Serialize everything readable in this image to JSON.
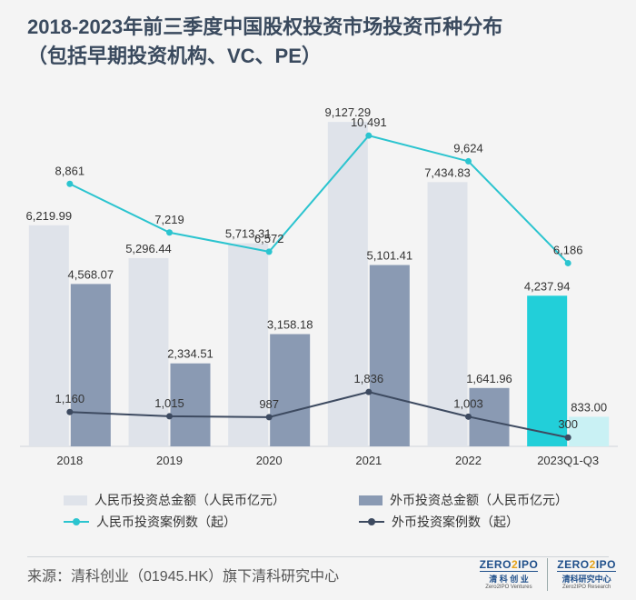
{
  "title": {
    "line1": "2018-2023年前三季度中国股权投资市场投资币种分布",
    "line2": "（包括早期投资机构、VC、PE）"
  },
  "chart_data": {
    "type": "bar",
    "categories": [
      "2018",
      "2019",
      "2020",
      "2021",
      "2022",
      "2023Q1-Q3"
    ],
    "series": [
      {
        "name": "人民币投资总金额（人民币亿元）",
        "kind": "bar",
        "values": [
          6219.99,
          5296.44,
          5713.31,
          9127.29,
          7434.83,
          4237.94
        ],
        "labels": [
          "6,219.99",
          "5,296.44",
          "5,713.31",
          "9,127.29",
          "7,434.83",
          "4,237.94"
        ],
        "color": "#dfe3ea",
        "highlight_color": "#22cfd9"
      },
      {
        "name": "外币投资总金额（人民币亿元）",
        "kind": "bar",
        "values": [
          4568.07,
          2334.51,
          3158.18,
          5101.41,
          1641.96,
          833.0
        ],
        "labels": [
          "4,568.07",
          "2,334.51",
          "3,158.18",
          "5,101.41",
          "1,641.96",
          "833.00"
        ],
        "color": "#8a9ab3",
        "highlight_color": "#c9f1f4"
      },
      {
        "name": "人民币投资案例数（起）",
        "kind": "line",
        "values": [
          8861,
          7219,
          6572,
          10491,
          9624,
          6186
        ],
        "labels": [
          "8,861",
          "7,219",
          "6,572",
          "10,491",
          "9,624",
          "6,186"
        ],
        "color": "#2bc4cf"
      },
      {
        "name": "外币投资案例数（起）",
        "kind": "line",
        "values": [
          1160,
          1015,
          987,
          1836,
          1003,
          300
        ],
        "labels": [
          "1,160",
          "1,015",
          "987",
          "1,836",
          "1,003",
          "300"
        ],
        "color": "#3d4a60"
      }
    ],
    "bar_axis_range": [
      0,
      10000
    ],
    "line_axis_range": [
      0,
      12000
    ],
    "gridlines": false,
    "legend_position": "bottom"
  },
  "legend": {
    "rmb_amount": "人民币投资总金额（人民币亿元）",
    "fx_amount": "外币投资总金额（人民币亿元）",
    "rmb_cases": "人民币投资案例数（起）",
    "fx_cases": "外币投资案例数（起）"
  },
  "source": "来源：清科创业（01945.HK）旗下清科研究中心",
  "logos": [
    {
      "brand_a": "ZERO",
      "brand_b": "IPO",
      "cn": "清 科 创 业",
      "en": "Zero2IPO Ventures"
    },
    {
      "brand_a": "ZERO",
      "brand_b": "IPO",
      "cn": "清科研究中心",
      "en": "Zero2IPO Research"
    }
  ]
}
